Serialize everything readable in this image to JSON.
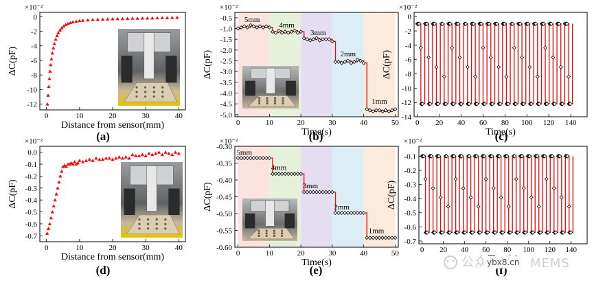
{
  "chart_data": [
    {
      "id": "a",
      "type": "scatter",
      "panel_label": "(a)",
      "multiplier": "×10⁻²",
      "xlabel": "Distance from sensor(mm)",
      "ylabel": "ΔC(pF)",
      "xlim": [
        -2,
        42
      ],
      "ylim": [
        -12.8,
        0.6
      ],
      "xticks": [
        0,
        10,
        20,
        30,
        40
      ],
      "yticks": [
        0,
        -2,
        -4,
        -6,
        -8,
        -10,
        -12
      ],
      "series": [
        {
          "name": "ΔC",
          "color": "#ff0000",
          "marker": "triangle",
          "x": [
            0.3,
            0.5,
            0.7,
            0.9,
            1.1,
            1.3,
            1.5,
            1.8,
            2.1,
            2.4,
            2.8,
            3.2,
            3.6,
            4.1,
            4.6,
            5.2,
            5.8,
            6.5,
            7.2,
            8,
            9,
            10,
            11,
            12.5,
            14,
            15.5,
            17,
            18.5,
            20,
            21.5,
            23,
            24.5,
            26,
            27.5,
            29,
            30.5,
            32,
            33.5,
            35,
            36.5,
            38,
            39.5
          ],
          "y": [
            -12,
            -10.8,
            -9.6,
            -8.5,
            -7.5,
            -6.6,
            -5.8,
            -5,
            -4.3,
            -3.7,
            -3.1,
            -2.6,
            -2.2,
            -1.85,
            -1.55,
            -1.3,
            -1.1,
            -0.95,
            -0.82,
            -0.72,
            -0.62,
            -0.55,
            -0.5,
            -0.45,
            -0.4,
            -0.38,
            -0.35,
            -0.32,
            -0.3,
            -0.28,
            -0.28,
            -0.25,
            -0.22,
            -0.22,
            -0.2,
            -0.2,
            -0.18,
            -0.16,
            -0.15,
            -0.15,
            -0.12,
            -0.1
          ]
        }
      ]
    },
    {
      "id": "b",
      "type": "line",
      "panel_label": "(b)",
      "multiplier": "×10⁻²",
      "xlabel": "Time(s)",
      "ylabel": "ΔC(pF)",
      "xlim": [
        -1,
        51
      ],
      "ylim": [
        -5.1,
        -0.25
      ],
      "xticks": [
        0,
        10,
        20,
        30,
        40,
        50
      ],
      "yticks": [
        -0.5,
        -1.0,
        -1.5,
        -2.0,
        -2.5,
        -3.0,
        -3.5,
        -4.0,
        -4.5,
        -5.0
      ],
      "bands": [
        {
          "from": 0,
          "to": 10,
          "label": "5mm",
          "color": "#fbe3e0",
          "label_x": 4.5,
          "label_y": -0.7
        },
        {
          "from": 10,
          "to": 20,
          "label": "4mm",
          "color": "#e6f1dc",
          "label_x": 15.5,
          "label_y": -0.95
        },
        {
          "from": 20,
          "to": 30,
          "label": "3mm",
          "color": "#e4def0",
          "label_x": 25.5,
          "label_y": -1.3
        },
        {
          "from": 30,
          "to": 40,
          "label": "2mm",
          "color": "#dceef5",
          "label_x": 35,
          "label_y": -2.3
        },
        {
          "from": 40,
          "to": 50,
          "label": "1mm",
          "color": "#fbeade",
          "label_x": 45,
          "label_y": -4.5
        }
      ],
      "series": [
        {
          "name": "ΔC",
          "color": "#ff0000",
          "marker": "diamond",
          "x": [
            0,
            1,
            2,
            3,
            4,
            5,
            6,
            7,
            8,
            9,
            10,
            11,
            12,
            13,
            14,
            15,
            16,
            17,
            18,
            19,
            20,
            21,
            22,
            23,
            24,
            25,
            26,
            27,
            28,
            29,
            30,
            31,
            32,
            33,
            34,
            35,
            36,
            37,
            38,
            39,
            40,
            41,
            42,
            43,
            44,
            45,
            46,
            47,
            48,
            49,
            50
          ],
          "y": [
            -1.0,
            -0.95,
            -0.9,
            -0.95,
            -0.85,
            -0.9,
            -0.95,
            -0.9,
            -0.95,
            -0.9,
            -0.95,
            -1.15,
            -1.2,
            -1.1,
            -1.2,
            -1.15,
            -1.2,
            -1.15,
            -1.1,
            -1.2,
            -1.15,
            -1.45,
            -1.5,
            -1.55,
            -1.5,
            -1.45,
            -1.55,
            -1.5,
            -1.5,
            -1.5,
            -1.6,
            -2.55,
            -2.55,
            -2.6,
            -2.55,
            -2.5,
            -2.6,
            -2.55,
            -2.45,
            -2.5,
            -2.6,
            -4.75,
            -4.8,
            -4.85,
            -4.8,
            -4.8,
            -4.85,
            -4.8,
            -4.85,
            -4.8,
            -4.75
          ]
        }
      ]
    },
    {
      "id": "c",
      "type": "line",
      "panel_label": "(c)",
      "multiplier": "×10⁻²",
      "xlabel": "Time(s)",
      "ylabel": "ΔC(pF)",
      "xlim": [
        -3,
        155
      ],
      "ylim": [
        -14,
        0.6
      ],
      "xticks": [
        0,
        20,
        40,
        60,
        80,
        100,
        120,
        140
      ],
      "yticks": [
        0,
        -2,
        -4,
        -6,
        -8,
        -10,
        -12,
        -14
      ],
      "cycle": {
        "period": 7.1,
        "count": 20,
        "high": -1.0,
        "low": -12.2
      },
      "series": [
        {
          "name": "ΔC",
          "color": "#ff0000",
          "marker": "diamond"
        }
      ]
    },
    {
      "id": "d",
      "type": "scatter",
      "panel_label": "(d)",
      "multiplier": "×10⁻²",
      "xlabel": "Distance from sensor(mm)",
      "ylabel": "ΔC(pF)",
      "xlim": [
        -2,
        42
      ],
      "ylim": [
        -0.75,
        0.05
      ],
      "xticks": [
        0,
        10,
        20,
        30,
        40
      ],
      "yticks": [
        0.0,
        -0.1,
        -0.2,
        -0.3,
        -0.4,
        -0.5,
        -0.6,
        -0.7
      ],
      "series": [
        {
          "name": "ΔC",
          "color": "#ff0000",
          "marker": "triangle",
          "x": [
            0.2,
            0.6,
            1,
            1.4,
            1.8,
            2.2,
            2.6,
            3,
            3.4,
            3.8,
            4.2,
            4.6,
            5,
            5.5,
            6,
            6.5,
            7,
            7.5,
            8,
            8.5,
            9,
            9.5,
            10,
            11,
            12,
            13,
            14,
            15,
            16,
            17,
            18,
            19,
            20,
            21,
            22,
            23,
            24,
            25,
            26,
            27,
            28,
            29,
            30,
            31,
            32,
            33,
            34,
            35,
            36,
            37,
            38,
            39,
            40
          ],
          "y": [
            -0.68,
            -0.64,
            -0.6,
            -0.55,
            -0.5,
            -0.45,
            -0.4,
            -0.35,
            -0.3,
            -0.25,
            -0.2,
            -0.16,
            -0.12,
            -0.11,
            -0.12,
            -0.1,
            -0.1,
            -0.09,
            -0.1,
            -0.08,
            -0.1,
            -0.09,
            -0.07,
            -0.08,
            -0.07,
            -0.06,
            -0.07,
            -0.05,
            -0.06,
            -0.06,
            -0.05,
            -0.05,
            -0.06,
            -0.05,
            -0.04,
            -0.05,
            -0.04,
            -0.05,
            -0.02,
            -0.03,
            -0.03,
            -0.02,
            -0.03,
            -0.01,
            -0.02,
            -0.01,
            0.0,
            -0.02,
            0.0,
            -0.01,
            -0.02,
            0.0,
            -0.01
          ]
        }
      ]
    },
    {
      "id": "e",
      "type": "line",
      "panel_label": "(e)",
      "multiplier": "×10⁻²",
      "xlabel": "Time(s)",
      "ylabel": "ΔC(pF)",
      "xlim": [
        -1,
        51
      ],
      "ylim": [
        -0.6,
        -0.3
      ],
      "xticks": [
        0,
        10,
        20,
        30,
        40,
        50
      ],
      "yticks": [
        -0.3,
        -0.35,
        -0.4,
        -0.45,
        -0.5,
        -0.55,
        -0.6
      ],
      "bands": [
        {
          "from": 0,
          "to": 10,
          "label": "5mm",
          "color": "#fbe3e0",
          "label_x": 2,
          "label_y": -0.325
        },
        {
          "from": 10,
          "to": 20,
          "label": "4mm",
          "color": "#e6f1dc",
          "label_x": 13,
          "label_y": -0.37
        },
        {
          "from": 20,
          "to": 30,
          "label": "3mm",
          "color": "#e4def0",
          "label_x": 23,
          "label_y": -0.424
        },
        {
          "from": 30,
          "to": 40,
          "label": "2mm",
          "color": "#dceef5",
          "label_x": 33,
          "label_y": -0.488
        },
        {
          "from": 40,
          "to": 50,
          "label": "1mm",
          "color": "#fbeade",
          "label_x": 44,
          "label_y": -0.558
        }
      ],
      "series": [
        {
          "name": "ΔC",
          "color": "#ff0000",
          "marker": "diamond",
          "x": [
            0,
            1,
            2,
            3,
            4,
            5,
            6,
            7,
            8,
            9,
            10,
            11,
            12,
            13,
            14,
            15,
            16,
            17,
            18,
            19,
            20,
            21,
            22,
            23,
            24,
            25,
            26,
            27,
            28,
            29,
            30,
            31,
            32,
            33,
            34,
            35,
            36,
            37,
            38,
            39,
            40,
            41,
            42,
            43,
            44,
            45,
            46,
            47,
            48,
            49,
            50
          ],
          "y": [
            -0.335,
            -0.335,
            -0.335,
            -0.335,
            -0.335,
            -0.335,
            -0.335,
            -0.335,
            -0.335,
            -0.335,
            -0.335,
            -0.382,
            -0.382,
            -0.382,
            -0.382,
            -0.382,
            -0.382,
            -0.382,
            -0.382,
            -0.382,
            -0.382,
            -0.436,
            -0.436,
            -0.436,
            -0.436,
            -0.436,
            -0.436,
            -0.436,
            -0.436,
            -0.436,
            -0.436,
            -0.498,
            -0.498,
            -0.498,
            -0.498,
            -0.498,
            -0.498,
            -0.498,
            -0.498,
            -0.498,
            -0.498,
            -0.572,
            -0.572,
            -0.572,
            -0.572,
            -0.572,
            -0.572,
            -0.572,
            -0.572,
            -0.572,
            -0.572
          ]
        }
      ]
    },
    {
      "id": "f",
      "type": "line",
      "panel_label": "(f)",
      "multiplier": "×10⁻²",
      "xlabel": "Time(s)",
      "ylabel": "ΔC(pF)",
      "xlim": [
        -3,
        155
      ],
      "ylim": [
        -0.72,
        -0.03
      ],
      "xticks": [
        0,
        20,
        40,
        60,
        80,
        100,
        120,
        140
      ],
      "yticks": [
        -0.1,
        -0.2,
        -0.3,
        -0.4,
        -0.5,
        -0.6,
        -0.7
      ],
      "cycle": {
        "period": 7.1,
        "count": 20,
        "high": -0.1,
        "low": -0.64
      },
      "series": [
        {
          "name": "ΔC",
          "color": "#ff0000",
          "marker": "diamond"
        }
      ]
    }
  ],
  "watermark": {
    "line1": "公众",
    "line2": "ybx8.cn",
    "line3": "MEMS"
  }
}
